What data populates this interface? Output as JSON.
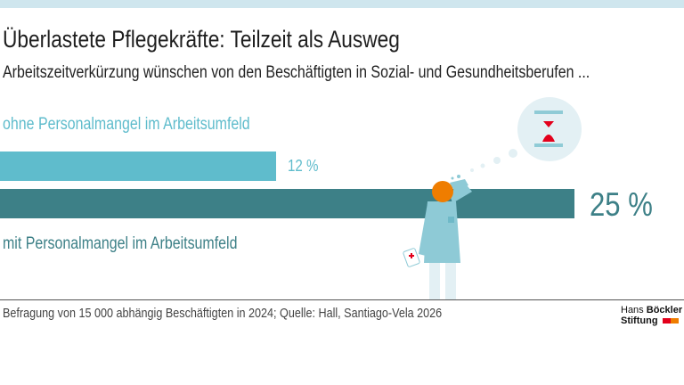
{
  "header": {
    "title": "Überlastete Pflegekräfte: Teilzeit als Ausweg",
    "subtitle": "Arbeitszeitverkürzung wünschen von den Beschäftigten in Sozial- und Gesundheitsberufen ..."
  },
  "chart_data": {
    "type": "bar",
    "orientation": "horizontal",
    "categories": [
      "ohne Personalmangel im Arbeitsumfeld",
      "mit Personalmangel im Arbeitsumfeld"
    ],
    "values": [
      12,
      25
    ],
    "value_labels": [
      "12 %",
      "25 %"
    ],
    "colors": [
      "#5fbccc",
      "#3d8087"
    ],
    "grid": false
  },
  "footer": {
    "source": "Befragung von 15 000 abhängig Beschäftigten in 2024; Quelle: Hall, Santiago-Vela 2026"
  },
  "logo": {
    "line1a": "Hans",
    "line1b": "Böckler",
    "line2": "Stiftung"
  },
  "illustration": {
    "icons": [
      "nurse-figure",
      "hourglass-icon",
      "thought-bubble"
    ]
  }
}
